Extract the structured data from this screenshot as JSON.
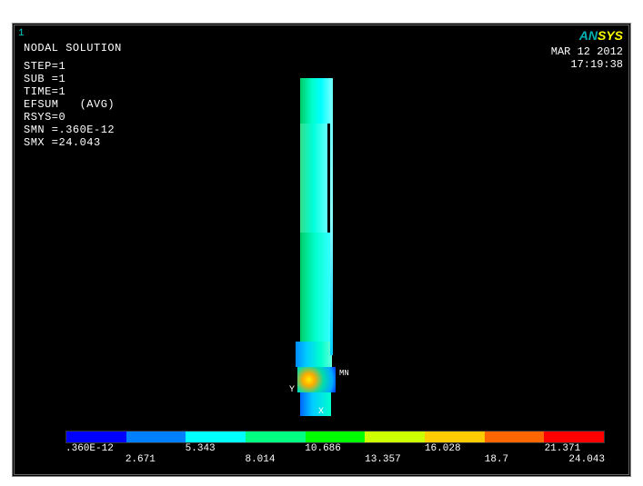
{
  "index": "1",
  "title": "NODAL SOLUTION",
  "info": {
    "step": "STEP=1",
    "sub": "SUB =1",
    "time": "TIME=1",
    "result": "EFSUM   (AVG)",
    "rsys": "RSYS=0",
    "smn": "SMN =.360E-12",
    "smx": "SMX =24.043"
  },
  "logo": {
    "an": "AN",
    "sys": "SYS"
  },
  "date": "MAR 12 2012",
  "time_str": "17:19:38",
  "axes": {
    "y": "Y",
    "x": "X"
  },
  "mn": "MN",
  "legend": {
    "colors": [
      "#0000ff",
      "#0080ff",
      "#00ffff",
      "#00ff80",
      "#00ff00",
      "#ccff00",
      "#ffcc00",
      "#ff6600",
      "#ff0000"
    ],
    "ticks_top": [
      {
        "pos": 0.0,
        "label": ".360E-12"
      },
      {
        "pos": 22.2,
        "label": "5.343"
      },
      {
        "pos": 44.4,
        "label": "10.686"
      },
      {
        "pos": 66.6,
        "label": "16.028"
      },
      {
        "pos": 88.8,
        "label": "21.371"
      }
    ],
    "ticks_bottom": [
      {
        "pos": 11.1,
        "label": "2.671"
      },
      {
        "pos": 33.3,
        "label": "8.014"
      },
      {
        "pos": 55.5,
        "label": "13.357"
      },
      {
        "pos": 77.7,
        "label": "18.7"
      },
      {
        "pos": 100.0,
        "label": "24.043"
      }
    ]
  }
}
